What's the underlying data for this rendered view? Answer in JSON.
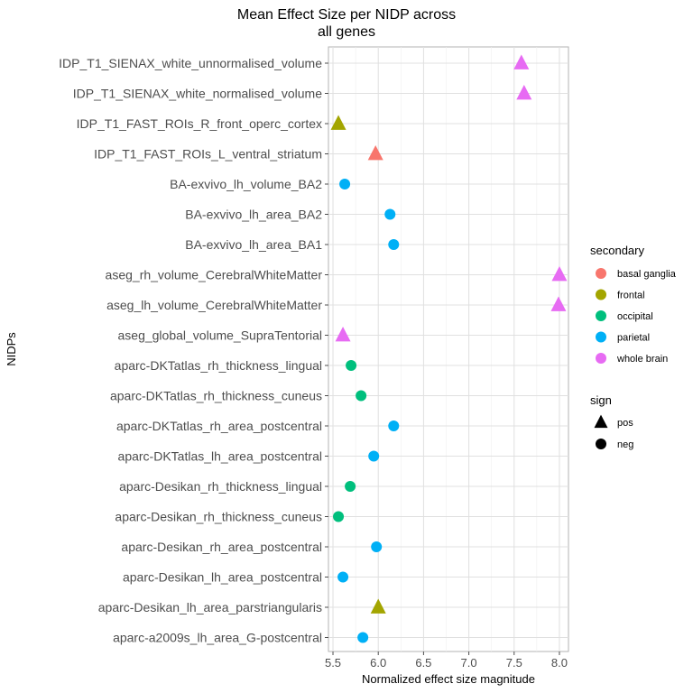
{
  "chart_data": {
    "type": "scatter",
    "title": [
      "Mean Effect Size per NIDP across",
      "all genes"
    ],
    "xlabel": "Normalized effect size magnitude",
    "ylabel": "NIDPs",
    "xlim": [
      5.45,
      8.1
    ],
    "xticks": [
      5.5,
      6.0,
      6.5,
      7.0,
      7.5,
      8.0
    ],
    "xtick_labels": [
      "5.5",
      "6.0",
      "6.5",
      "7.0",
      "7.5",
      "8.0"
    ],
    "grid": true,
    "categories": [
      "IDP_T1_SIENAX_white_unnormalised_volume",
      "IDP_T1_SIENAX_white_normalised_volume",
      "IDP_T1_FAST_ROIs_R_front_operc_cortex",
      "IDP_T1_FAST_ROIs_L_ventral_striatum",
      "BA-exvivo_lh_volume_BA2",
      "BA-exvivo_lh_area_BA2",
      "BA-exvivo_lh_area_BA1",
      "aseg_rh_volume_CerebralWhiteMatter",
      "aseg_lh_volume_CerebralWhiteMatter",
      "aseg_global_volume_SupraTentorial",
      "aparc-DKTatlas_rh_thickness_lingual",
      "aparc-DKTatlas_rh_thickness_cuneus",
      "aparc-DKTatlas_rh_area_postcentral",
      "aparc-DKTatlas_lh_area_postcentral",
      "aparc-Desikan_rh_thickness_lingual",
      "aparc-Desikan_rh_thickness_cuneus",
      "aparc-Desikan_rh_area_postcentral",
      "aparc-Desikan_lh_area_postcentral",
      "aparc-Desikan_lh_area_parstriangularis",
      "aparc-a2009s_lh_area_G-postcentral"
    ],
    "points": [
      {
        "label": "IDP_T1_SIENAX_white_unnormalised_volume",
        "value": 7.58,
        "secondary": "whole brain",
        "sign": "pos"
      },
      {
        "label": "IDP_T1_SIENAX_white_normalised_volume",
        "value": 7.61,
        "secondary": "whole brain",
        "sign": "pos"
      },
      {
        "label": "IDP_T1_FAST_ROIs_R_front_operc_cortex",
        "value": 5.56,
        "secondary": "frontal",
        "sign": "pos"
      },
      {
        "label": "IDP_T1_FAST_ROIs_L_ventral_striatum",
        "value": 5.97,
        "secondary": "basal ganglia",
        "sign": "pos"
      },
      {
        "label": "BA-exvivo_lh_volume_BA2",
        "value": 5.63,
        "secondary": "parietal",
        "sign": "neg"
      },
      {
        "label": "BA-exvivo_lh_area_BA2",
        "value": 6.13,
        "secondary": "parietal",
        "sign": "neg"
      },
      {
        "label": "BA-exvivo_lh_area_BA1",
        "value": 6.17,
        "secondary": "parietal",
        "sign": "neg"
      },
      {
        "label": "aseg_rh_volume_CerebralWhiteMatter",
        "value": 8.0,
        "secondary": "whole brain",
        "sign": "pos"
      },
      {
        "label": "aseg_lh_volume_CerebralWhiteMatter",
        "value": 7.99,
        "secondary": "whole brain",
        "sign": "pos"
      },
      {
        "label": "aseg_global_volume_SupraTentorial",
        "value": 5.61,
        "secondary": "whole brain",
        "sign": "pos"
      },
      {
        "label": "aparc-DKTatlas_rh_thickness_lingual",
        "value": 5.7,
        "secondary": "occipital",
        "sign": "neg"
      },
      {
        "label": "aparc-DKTatlas_rh_thickness_cuneus",
        "value": 5.81,
        "secondary": "occipital",
        "sign": "neg"
      },
      {
        "label": "aparc-DKTatlas_rh_area_postcentral",
        "value": 6.17,
        "secondary": "parietal",
        "sign": "neg"
      },
      {
        "label": "aparc-DKTatlas_lh_area_postcentral",
        "value": 5.95,
        "secondary": "parietal",
        "sign": "neg"
      },
      {
        "label": "aparc-Desikan_rh_thickness_lingual",
        "value": 5.69,
        "secondary": "occipital",
        "sign": "neg"
      },
      {
        "label": "aparc-Desikan_rh_thickness_cuneus",
        "value": 5.56,
        "secondary": "occipital",
        "sign": "neg"
      },
      {
        "label": "aparc-Desikan_rh_area_postcentral",
        "value": 5.98,
        "secondary": "parietal",
        "sign": "neg"
      },
      {
        "label": "aparc-Desikan_lh_area_postcentral",
        "value": 5.61,
        "secondary": "parietal",
        "sign": "neg"
      },
      {
        "label": "aparc-Desikan_lh_area_parstriangularis",
        "value": 6.0,
        "secondary": "frontal",
        "sign": "pos"
      },
      {
        "label": "aparc-a2009s_lh_area_G-postcentral",
        "value": 5.83,
        "secondary": "parietal",
        "sign": "neg"
      }
    ],
    "legend": {
      "placement": "right",
      "secondary": {
        "title": "secondary",
        "items": [
          {
            "label": "basal ganglia",
            "color": "#F8766D"
          },
          {
            "label": "frontal",
            "color": "#A3A500"
          },
          {
            "label": "occipital",
            "color": "#00BF7D"
          },
          {
            "label": "parietal",
            "color": "#00B0F6"
          },
          {
            "label": "whole brain",
            "color": "#E76BF3"
          }
        ]
      },
      "sign": {
        "title": "sign",
        "items": [
          {
            "label": "pos",
            "shape": "triangle"
          },
          {
            "label": "neg",
            "shape": "circle"
          }
        ]
      }
    }
  }
}
